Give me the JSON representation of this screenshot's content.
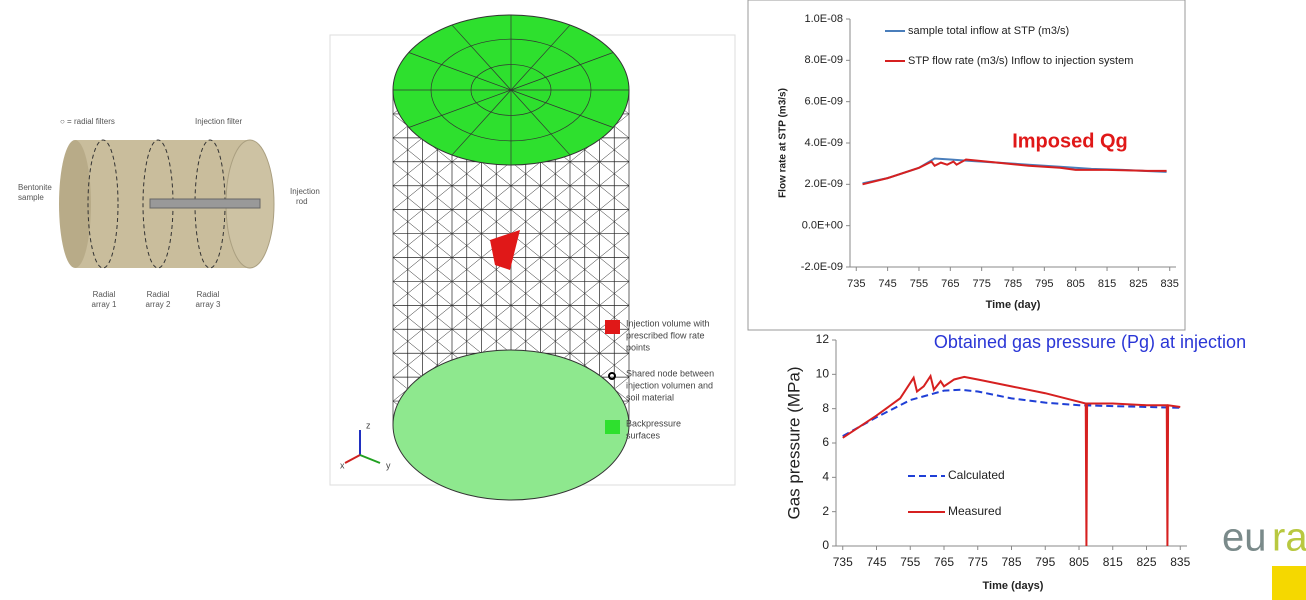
{
  "chart_data": [
    {
      "type": "line",
      "y_label": "Flow rate at STP (m3/s)",
      "x_label": "Time (day)",
      "annotation": "Imposed Qg",
      "xlim": [
        733,
        837
      ],
      "xticks": [
        735,
        745,
        755,
        765,
        775,
        785,
        795,
        805,
        815,
        825,
        835
      ],
      "ylim": [
        -2e-09,
        1e-08
      ],
      "yticks": [
        {
          "value": -2e-09,
          "label": "-2.0E-09"
        },
        {
          "value": 0,
          "label": "0.0E+00"
        },
        {
          "value": 2e-09,
          "label": "2.0E-09"
        },
        {
          "value": 4e-09,
          "label": "4.0E-09"
        },
        {
          "value": 6e-09,
          "label": "6.0E-09"
        },
        {
          "value": 8e-09,
          "label": "8.0E-09"
        },
        {
          "value": 1e-08,
          "label": "1.0E-08"
        }
      ],
      "grid": false,
      "legend": "upper left",
      "series": [
        {
          "name": "sample total inflow at STP (m3/s)",
          "color": "#4a7ebb",
          "x": [
            737,
            745,
            755,
            760,
            765,
            770,
            780,
            790,
            800,
            810,
            820,
            834
          ],
          "values": [
            2.05e-09,
            2.3e-09,
            2.8e-09,
            3.25e-09,
            3.2e-09,
            3.15e-09,
            3.05e-09,
            2.95e-09,
            2.85e-09,
            2.75e-09,
            2.7e-09,
            2.6e-09
          ]
        },
        {
          "name": "STP flow rate (m3/s) Inflow to injection system",
          "color": "#d62020",
          "x": [
            737,
            745,
            755,
            759,
            760,
            762,
            764,
            766,
            767,
            770,
            780,
            790,
            800,
            805,
            815,
            828,
            834
          ],
          "values": [
            2e-09,
            2.3e-09,
            2.8e-09,
            3.1e-09,
            2.9e-09,
            3.05e-09,
            2.95e-09,
            3.1e-09,
            2.95e-09,
            3.2e-09,
            3.05e-09,
            2.9e-09,
            2.8e-09,
            2.7e-09,
            2.7e-09,
            2.65e-09,
            2.65e-09
          ]
        }
      ]
    },
    {
      "type": "line",
      "title": "Obtained gas pressure (Pg) at injection",
      "y_label": "Gas pressure (MPa)",
      "x_label": "Time (days)",
      "xlim": [
        733,
        837
      ],
      "xticks": [
        735,
        745,
        755,
        765,
        775,
        785,
        795,
        805,
        815,
        825,
        835
      ],
      "ylim": [
        0,
        12
      ],
      "yticks": [
        0,
        2,
        4,
        6,
        8,
        10,
        12
      ],
      "grid": false,
      "legend": "lower left",
      "series": [
        {
          "name": "Calculated",
          "color": "#1f3fd6",
          "style": "dashed",
          "x": [
            735,
            745,
            755,
            765,
            770,
            775,
            785,
            795,
            805,
            815,
            825,
            835
          ],
          "values": [
            6.4,
            7.5,
            8.5,
            9.05,
            9.1,
            9.0,
            8.6,
            8.35,
            8.2,
            8.15,
            8.1,
            8.05
          ]
        },
        {
          "name": "Measured",
          "color": "#d62020",
          "style": "solid",
          "x": [
            735,
            745,
            752,
            756,
            757,
            759,
            761,
            762,
            764,
            765,
            768,
            771,
            775,
            785,
            795,
            803,
            807,
            807.2,
            807.4,
            815,
            825,
            831,
            831.2,
            831.4,
            835
          ],
          "values": [
            6.3,
            7.6,
            8.6,
            9.8,
            9.0,
            9.3,
            9.9,
            9.1,
            9.6,
            9.3,
            9.7,
            9.85,
            9.7,
            9.3,
            8.9,
            8.5,
            8.3,
            0,
            8.3,
            8.3,
            8.2,
            8.2,
            0,
            8.2,
            8.1
          ]
        }
      ]
    }
  ],
  "sample_diagram": {
    "legend": "○ = radial filters",
    "injection_filter": "Injection filter",
    "sample_label": [
      "Bentonite",
      "sample"
    ],
    "rod_label": [
      "Injection",
      "rod"
    ],
    "arrays": [
      [
        "Radial",
        "array 1"
      ],
      [
        "Radial",
        "array 2"
      ],
      [
        "Radial",
        "array 3"
      ]
    ]
  },
  "mesh_diagram": {
    "legend": [
      [
        "Injection volume with",
        "prescribed flow rate",
        "points"
      ],
      [
        "Shared node between",
        "injection volumen and",
        "soil material"
      ],
      [
        "Backpressure",
        "surfaces"
      ]
    ],
    "axes": [
      "z",
      "x",
      "y"
    ]
  },
  "logo": {
    "left": "eu",
    "right": "ra"
  }
}
